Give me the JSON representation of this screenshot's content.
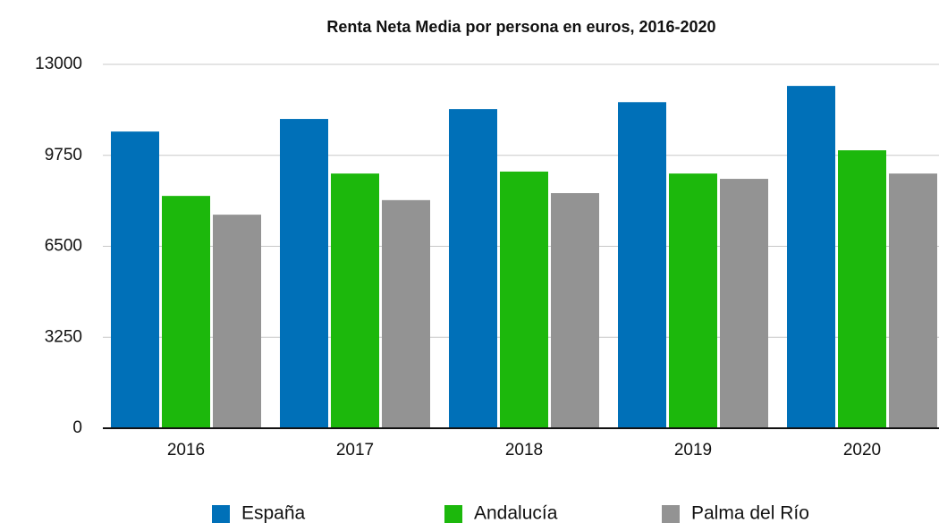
{
  "chart_data": {
    "type": "bar",
    "title": "Renta Neta Media por persona en euros,  2016-2020",
    "categories": [
      "2016",
      "2017",
      "2018",
      "2019",
      "2020"
    ],
    "series": [
      {
        "name": "España",
        "color": "#0070b8",
        "values": [
          10600,
          11050,
          11400,
          11650,
          12230
        ]
      },
      {
        "name": "Andalucía",
        "color": "#1cb80c",
        "values": [
          8300,
          9100,
          9170,
          9100,
          9930
        ]
      },
      {
        "name": "Palma del Río",
        "color": "#939393",
        "values": [
          7630,
          8150,
          8400,
          8910,
          9100
        ]
      }
    ],
    "ylim": [
      0,
      13000
    ],
    "yticks": [
      0,
      3250,
      6500,
      9750,
      13000
    ],
    "grid": true,
    "legend": "bottom"
  }
}
